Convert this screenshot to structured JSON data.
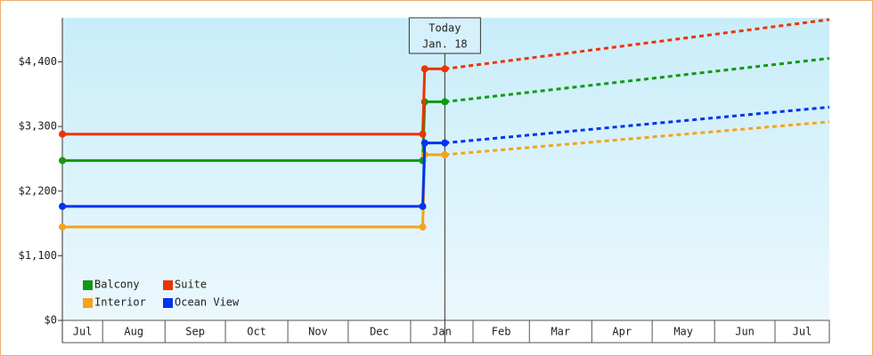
{
  "chart_data": {
    "type": "line",
    "x": [
      11,
      190,
      191,
      201,
      392
    ],
    "xlim": [
      11,
      392
    ],
    "xticks": [
      {
        "value": 0,
        "label": "Jul"
      },
      {
        "value": 31,
        "label": "Aug"
      },
      {
        "value": 62,
        "label": "Sep"
      },
      {
        "value": 92,
        "label": "Oct"
      },
      {
        "value": 123,
        "label": "Nov"
      },
      {
        "value": 153,
        "label": "Dec"
      },
      {
        "value": 184,
        "label": "Jan"
      },
      {
        "value": 215,
        "label": "Feb"
      },
      {
        "value": 243,
        "label": "Mar"
      },
      {
        "value": 274,
        "label": "Apr"
      },
      {
        "value": 304,
        "label": "May"
      },
      {
        "value": 335,
        "label": "Jun"
      },
      {
        "value": 365,
        "label": "Jul"
      }
    ],
    "ylim": [
      0,
      5150
    ],
    "yticks": [
      {
        "value": 0,
        "label": "$0"
      },
      {
        "value": 1100,
        "label": "$1,100"
      },
      {
        "value": 2200,
        "label": "$2,200"
      },
      {
        "value": 3300,
        "label": "$3,300"
      },
      {
        "value": 4400,
        "label": "$4,400"
      }
    ],
    "annotation": {
      "x": 201,
      "lines": [
        "Today",
        "Jan. 18"
      ]
    },
    "legend": "bottom-left",
    "series": [
      {
        "name": "Balcony",
        "color": "#119911",
        "values": [
          2720,
          2720,
          3720,
          3720,
          4460
        ]
      },
      {
        "name": "Suite",
        "color": "#ee3300",
        "values": [
          3170,
          3170,
          4280,
          4280,
          5120
        ]
      },
      {
        "name": "Interior",
        "color": "#f5a31a",
        "values": [
          1590,
          1590,
          2820,
          2820,
          3380
        ]
      },
      {
        "name": "Ocean View",
        "color": "#0033ee",
        "values": [
          1940,
          1940,
          3020,
          3020,
          3630
        ]
      }
    ]
  }
}
